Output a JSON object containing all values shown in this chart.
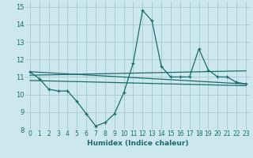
{
  "background_color": "#cce8ee",
  "grid_color": "#aaccd4",
  "line_color": "#1a6b6b",
  "xlim": [
    -0.5,
    23.5
  ],
  "ylim": [
    8,
    15.3
  ],
  "xlabel": "Humidex (Indice chaleur)",
  "yticks": [
    8,
    9,
    10,
    11,
    12,
    13,
    14,
    15
  ],
  "xticks": [
    0,
    1,
    2,
    3,
    4,
    5,
    6,
    7,
    8,
    9,
    10,
    11,
    12,
    13,
    14,
    15,
    16,
    17,
    18,
    19,
    20,
    21,
    22,
    23
  ],
  "series_main": {
    "x": [
      0,
      1,
      2,
      3,
      4,
      5,
      6,
      7,
      8,
      9,
      10,
      11,
      12,
      13,
      14,
      15,
      16,
      17,
      18,
      19,
      20,
      21,
      22,
      23
    ],
    "y": [
      11.3,
      10.9,
      10.3,
      10.2,
      10.2,
      9.6,
      8.9,
      8.2,
      8.4,
      8.9,
      10.1,
      11.8,
      14.8,
      14.2,
      11.6,
      11.0,
      11.0,
      11.0,
      12.6,
      11.4,
      11.0,
      11.0,
      10.7,
      10.6
    ]
  },
  "series_linear": [
    {
      "x": [
        0,
        23
      ],
      "y": [
        11.3,
        10.6
      ]
    },
    {
      "x": [
        0,
        23
      ],
      "y": [
        11.1,
        11.35
      ]
    },
    {
      "x": [
        0,
        23
      ],
      "y": [
        10.8,
        10.5
      ]
    }
  ]
}
